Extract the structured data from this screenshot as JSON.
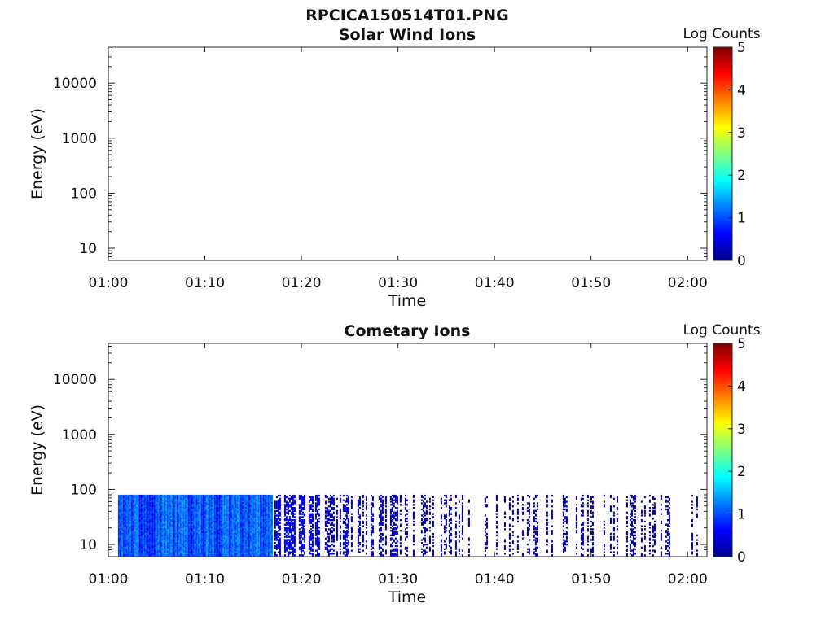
{
  "figure_title": "RPCICA150514T01.PNG",
  "colorbar": {
    "label": "Log Counts",
    "ticks": [
      "0",
      "1",
      "2",
      "3",
      "4",
      "5"
    ],
    "range": [
      0,
      5
    ],
    "colormap": "jet"
  },
  "chart_data": [
    {
      "type": "heatmap",
      "title": "Solar Wind Ions",
      "xlabel": "Time",
      "ylabel": "Energy (eV)",
      "yscale": "log",
      "ylim": [
        6,
        45000
      ],
      "xlim": [
        "01:00",
        "02:02"
      ],
      "x_ticks": [
        "01:00",
        "01:10",
        "01:20",
        "01:30",
        "01:40",
        "01:50",
        "02:00"
      ],
      "y_ticks": [
        "10",
        "100",
        "1000",
        "10000"
      ],
      "grid": false,
      "data_present": false,
      "value_range_log_counts": [
        0,
        5
      ]
    },
    {
      "type": "heatmap",
      "title": "Cometary Ions",
      "xlabel": "Time",
      "ylabel": "Energy (eV)",
      "yscale": "log",
      "ylim": [
        6,
        45000
      ],
      "xlim": [
        "01:00",
        "02:02"
      ],
      "x_ticks": [
        "01:00",
        "01:10",
        "01:20",
        "01:30",
        "01:40",
        "01:50",
        "02:00"
      ],
      "y_ticks": [
        "10",
        "100",
        "1000",
        "10000"
      ],
      "grid": false,
      "data_present": true,
      "data_time_range": [
        "01:01",
        "02:01"
      ],
      "data_energy_range_eV": [
        6,
        80
      ],
      "value_range_log_counts": [
        0,
        1.8
      ],
      "segments": [
        {
          "start": "01:01",
          "end": "01:17",
          "mean_log_counts": 0.9,
          "max_log_counts": 1.7,
          "coverage": 0.93
        },
        {
          "start": "01:17",
          "end": "01:22",
          "mean_log_counts": 0.45,
          "max_log_counts": 0.8,
          "coverage": 0.45
        },
        {
          "start": "01:22",
          "end": "01:30",
          "mean_log_counts": 0.3,
          "max_log_counts": 0.6,
          "coverage": 0.32
        },
        {
          "start": "01:30",
          "end": "02:01",
          "mean_log_counts": 0.2,
          "max_log_counts": 0.5,
          "coverage": 0.22
        }
      ]
    }
  ]
}
